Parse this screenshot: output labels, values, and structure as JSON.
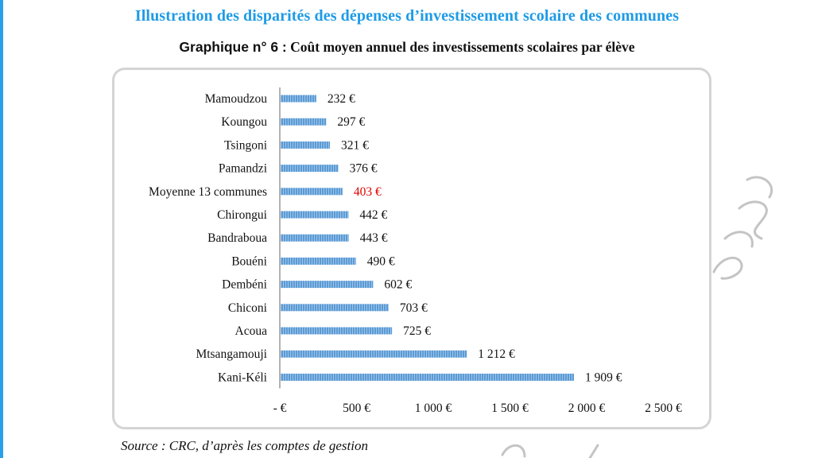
{
  "page_heading": "Illustration des disparités des dépenses d’investissement scolaire des communes",
  "chart_title": {
    "prefix": "Graphique n° 6 :",
    "text": "Coût moyen annuel des investissements scolaires par élève"
  },
  "source_note": "Source :  CRC, d’après les comptes de gestion",
  "colors": {
    "heading": "#1e9be6",
    "bar": "#5b9bd5",
    "highlight_label": "#e00000",
    "axis": "#999999"
  },
  "chart_data": {
    "type": "bar",
    "orientation": "horizontal",
    "title": "Coût moyen annuel des investissements scolaires par élève",
    "unit": "€",
    "categories": [
      "Mamoudzou",
      "Koungou",
      "Tsingoni",
      "Pamandzi",
      "Moyenne 13 communes",
      "Chirongui",
      "Bandraboua",
      "Bouéni",
      "Dembéni",
      "Chiconi",
      "Acoua",
      "Mtsangamouji",
      "Kani-Kéli"
    ],
    "values": [
      232,
      297,
      321,
      376,
      403,
      442,
      443,
      490,
      602,
      703,
      725,
      1212,
      1909
    ],
    "value_labels": [
      "232 €",
      "297 €",
      "321 €",
      "376 €",
      "403 €",
      "442 €",
      "443 €",
      "490 €",
      "602 €",
      "703 €",
      "725 €",
      "1 212 €",
      "1 909 €"
    ],
    "highlight_category": "Moyenne 13 communes",
    "xlim": [
      0,
      2500
    ],
    "x_ticks": [
      0,
      500,
      1000,
      1500,
      2000,
      2500
    ],
    "x_tick_labels": [
      "-  €",
      "500 €",
      "1 000 €",
      "1 500 €",
      "2 000 €",
      "2 500 €"
    ],
    "grid": false,
    "legend": "none"
  }
}
